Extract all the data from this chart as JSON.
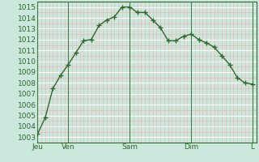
{
  "x_values": [
    0,
    1,
    2,
    3,
    4,
    5,
    6,
    7,
    8,
    9,
    10,
    11,
    12,
    13,
    14,
    15,
    16,
    17,
    18,
    19,
    20,
    21,
    22,
    23,
    24,
    25,
    26,
    27,
    28
  ],
  "y_values": [
    1003.3,
    1004.8,
    1007.5,
    1008.7,
    1009.7,
    1010.8,
    1011.9,
    1012.0,
    1013.3,
    1013.8,
    1014.1,
    1015.0,
    1015.0,
    1014.5,
    1014.5,
    1013.8,
    1013.1,
    1011.9,
    1011.9,
    1012.3,
    1012.5,
    1012.0,
    1011.7,
    1011.3,
    1010.5,
    1009.7,
    1008.5,
    1008.0,
    1007.9
  ],
  "x_tick_positions": [
    0,
    4,
    12,
    20,
    28
  ],
  "x_tick_labels": [
    "Jeu",
    "Ven",
    "Sam",
    "Dim",
    "L"
  ],
  "y_tick_min": 1003,
  "y_tick_max": 1015,
  "line_color": "#2d6a2d",
  "marker_color": "#2d6a2d",
  "bg_color": "#cce8dc",
  "grid_major_color": "#ffffff",
  "grid_minor_color": "#e8b8b8",
  "axis_label_color": "#2d6a2d",
  "vline_color": "#4a7a4a",
  "spine_color": "#2d6a2d"
}
